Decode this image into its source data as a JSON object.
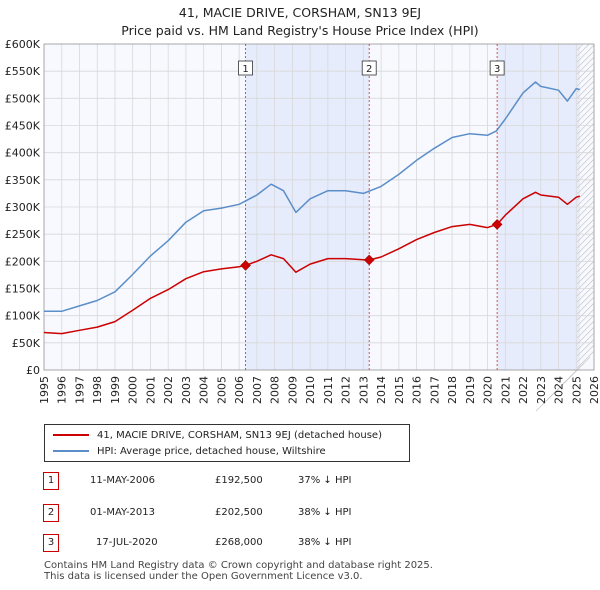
{
  "title_line1": "41, MACIE DRIVE, CORSHAM, SN13 9EJ",
  "title_line2": "Price paid vs. HM Land Registry's House Price Index (HPI)",
  "chart_data": {
    "type": "line",
    "title": "Price paid vs. HM Land Registry's House Price Index (HPI)",
    "xlabel": "",
    "ylabel": "",
    "xlim": [
      1995,
      2026
    ],
    "ylim": [
      0,
      600000
    ],
    "x_ticks": [
      "1995",
      "1996",
      "1997",
      "1998",
      "1999",
      "2000",
      "2001",
      "2002",
      "2003",
      "2004",
      "2005",
      "2006",
      "2007",
      "2008",
      "2009",
      "2010",
      "2011",
      "2012",
      "2013",
      "2014",
      "2015",
      "2016",
      "2017",
      "2018",
      "2019",
      "2020",
      "2021",
      "2022",
      "2023",
      "2024",
      "2025",
      "2026"
    ],
    "y_ticks": [
      "£0",
      "£50K",
      "£100K",
      "£150K",
      "£200K",
      "£250K",
      "£300K",
      "£350K",
      "£400K",
      "£450K",
      "£500K",
      "£550K",
      "£600K"
    ],
    "grid": true,
    "series": [
      {
        "name": "41, MACIE DRIVE, CORSHAM, SN13 9EJ (detached house)",
        "color": "#cc0000",
        "x": [
          1995.0,
          1996.0,
          1997.0,
          1998.0,
          1999.0,
          2000.0,
          2001.0,
          2002.0,
          2003.0,
          2004.0,
          2005.0,
          2006.0,
          2006.36,
          2007.0,
          2007.8,
          2008.5,
          2009.2,
          2010.0,
          2011.0,
          2012.0,
          2013.0,
          2013.33,
          2014.0,
          2015.0,
          2016.0,
          2017.0,
          2018.0,
          2019.0,
          2020.0,
          2020.54,
          2021.0,
          2022.0,
          2022.7,
          2023.0,
          2024.0,
          2024.5,
          2025.0,
          2025.2
        ],
        "y": [
          69000,
          67000,
          73000,
          79000,
          89000,
          110000,
          132000,
          148000,
          168000,
          181000,
          186000,
          190000,
          192500,
          200000,
          212000,
          205000,
          180000,
          195000,
          205000,
          205000,
          203000,
          202500,
          208000,
          223000,
          240000,
          253000,
          264000,
          268000,
          262000,
          268000,
          285000,
          315000,
          327000,
          322000,
          318000,
          305000,
          318000,
          320000
        ]
      },
      {
        "name": "HPI: Average price, detached house, Wiltshire",
        "color": "#5b8ec8",
        "x": [
          1995.0,
          1996.0,
          1997.0,
          1998.0,
          1999.0,
          2000.0,
          2001.0,
          2002.0,
          2003.0,
          2004.0,
          2005.0,
          2006.0,
          2007.0,
          2007.8,
          2008.5,
          2009.2,
          2010.0,
          2011.0,
          2012.0,
          2013.0,
          2014.0,
          2015.0,
          2016.0,
          2017.0,
          2018.0,
          2019.0,
          2020.0,
          2020.5,
          2021.0,
          2022.0,
          2022.7,
          2023.0,
          2024.0,
          2024.5,
          2025.0,
          2025.2
        ],
        "y": [
          108000,
          108000,
          118000,
          128000,
          144000,
          176000,
          210000,
          238000,
          272000,
          293000,
          298000,
          305000,
          322000,
          342000,
          330000,
          290000,
          315000,
          330000,
          330000,
          325000,
          338000,
          360000,
          386000,
          408000,
          428000,
          435000,
          432000,
          440000,
          462000,
          510000,
          530000,
          522000,
          515000,
          495000,
          518000,
          516000
        ]
      }
    ],
    "sale_markers": [
      {
        "label": "1",
        "x": 2006.36,
        "y": 192500
      },
      {
        "label": "2",
        "x": 2013.33,
        "y": 202500
      },
      {
        "label": "3",
        "x": 2020.54,
        "y": 268000
      }
    ]
  },
  "legend": {
    "property_label": "41, MACIE DRIVE, CORSHAM, SN13 9EJ (detached house)",
    "hpi_label": "HPI: Average price, detached house, Wiltshire"
  },
  "sales": [
    {
      "marker": "1",
      "date": "11-MAY-2006",
      "price": "£192,500",
      "hpi": "37% ↓ HPI"
    },
    {
      "marker": "2",
      "date": "01-MAY-2013",
      "price": "£202,500",
      "hpi": "38% ↓ HPI"
    },
    {
      "marker": "3",
      "date": "17-JUL-2020",
      "price": "£268,000",
      "hpi": "38% ↓ HPI"
    }
  ],
  "footer": {
    "line1": "Contains HM Land Registry data © Crown copyright and database right 2025.",
    "line2": "This data is licensed under the Open Government Licence v3.0."
  }
}
